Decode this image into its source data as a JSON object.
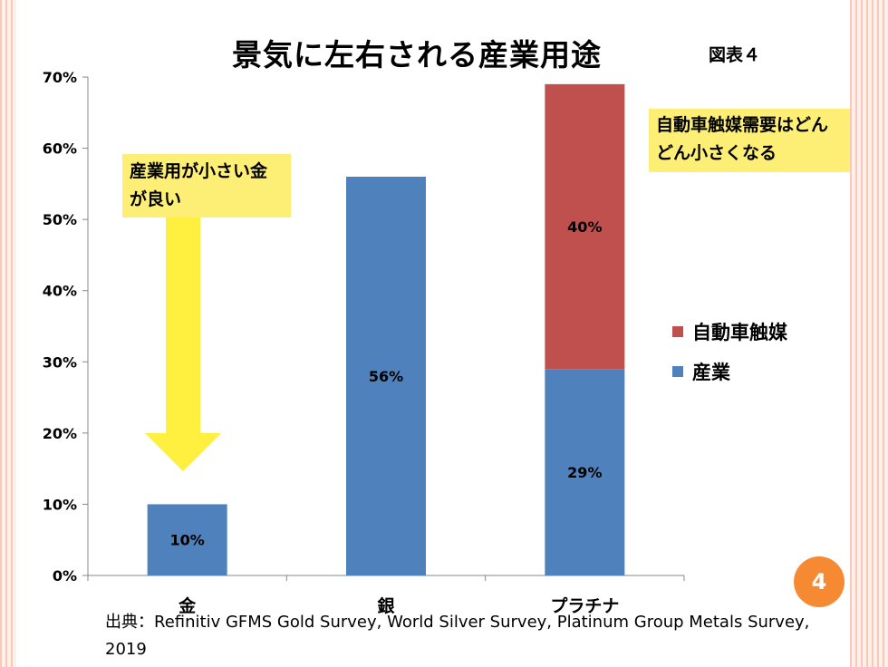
{
  "slide": {
    "title": "景気に左右される産業用途",
    "figure_label": "図表４",
    "page_number": "4",
    "source": "出典：Refinitiv GFMS Gold Survey, World Silver Survey, Platinum Group Metals Survey, 2019"
  },
  "annotations": {
    "left_note": "産業用が小さい金が良い",
    "right_note": "自動車触媒需要はどんどん小さくなる"
  },
  "colors": {
    "industry": "#4f81bd",
    "autocatalyst": "#c0504d",
    "note_bg": "#fdef75",
    "arrow": "#ffef3f",
    "badge": "#f68a32"
  },
  "chart_data": {
    "type": "bar",
    "stacked": true,
    "categories": [
      "金",
      "銀",
      "プラチナ"
    ],
    "series": [
      {
        "name": "産業",
        "values": [
          10,
          56,
          29
        ],
        "labels": [
          "10%",
          "56%",
          "29%"
        ]
      },
      {
        "name": "自動車触媒",
        "values": [
          0,
          0,
          40
        ],
        "labels": [
          "",
          "",
          "40%"
        ]
      }
    ],
    "ylim": [
      0,
      70
    ],
    "yticks": [
      "0%",
      "10%",
      "20%",
      "30%",
      "40%",
      "50%",
      "60%",
      "70%"
    ],
    "grid": false,
    "legend_position": "right"
  }
}
